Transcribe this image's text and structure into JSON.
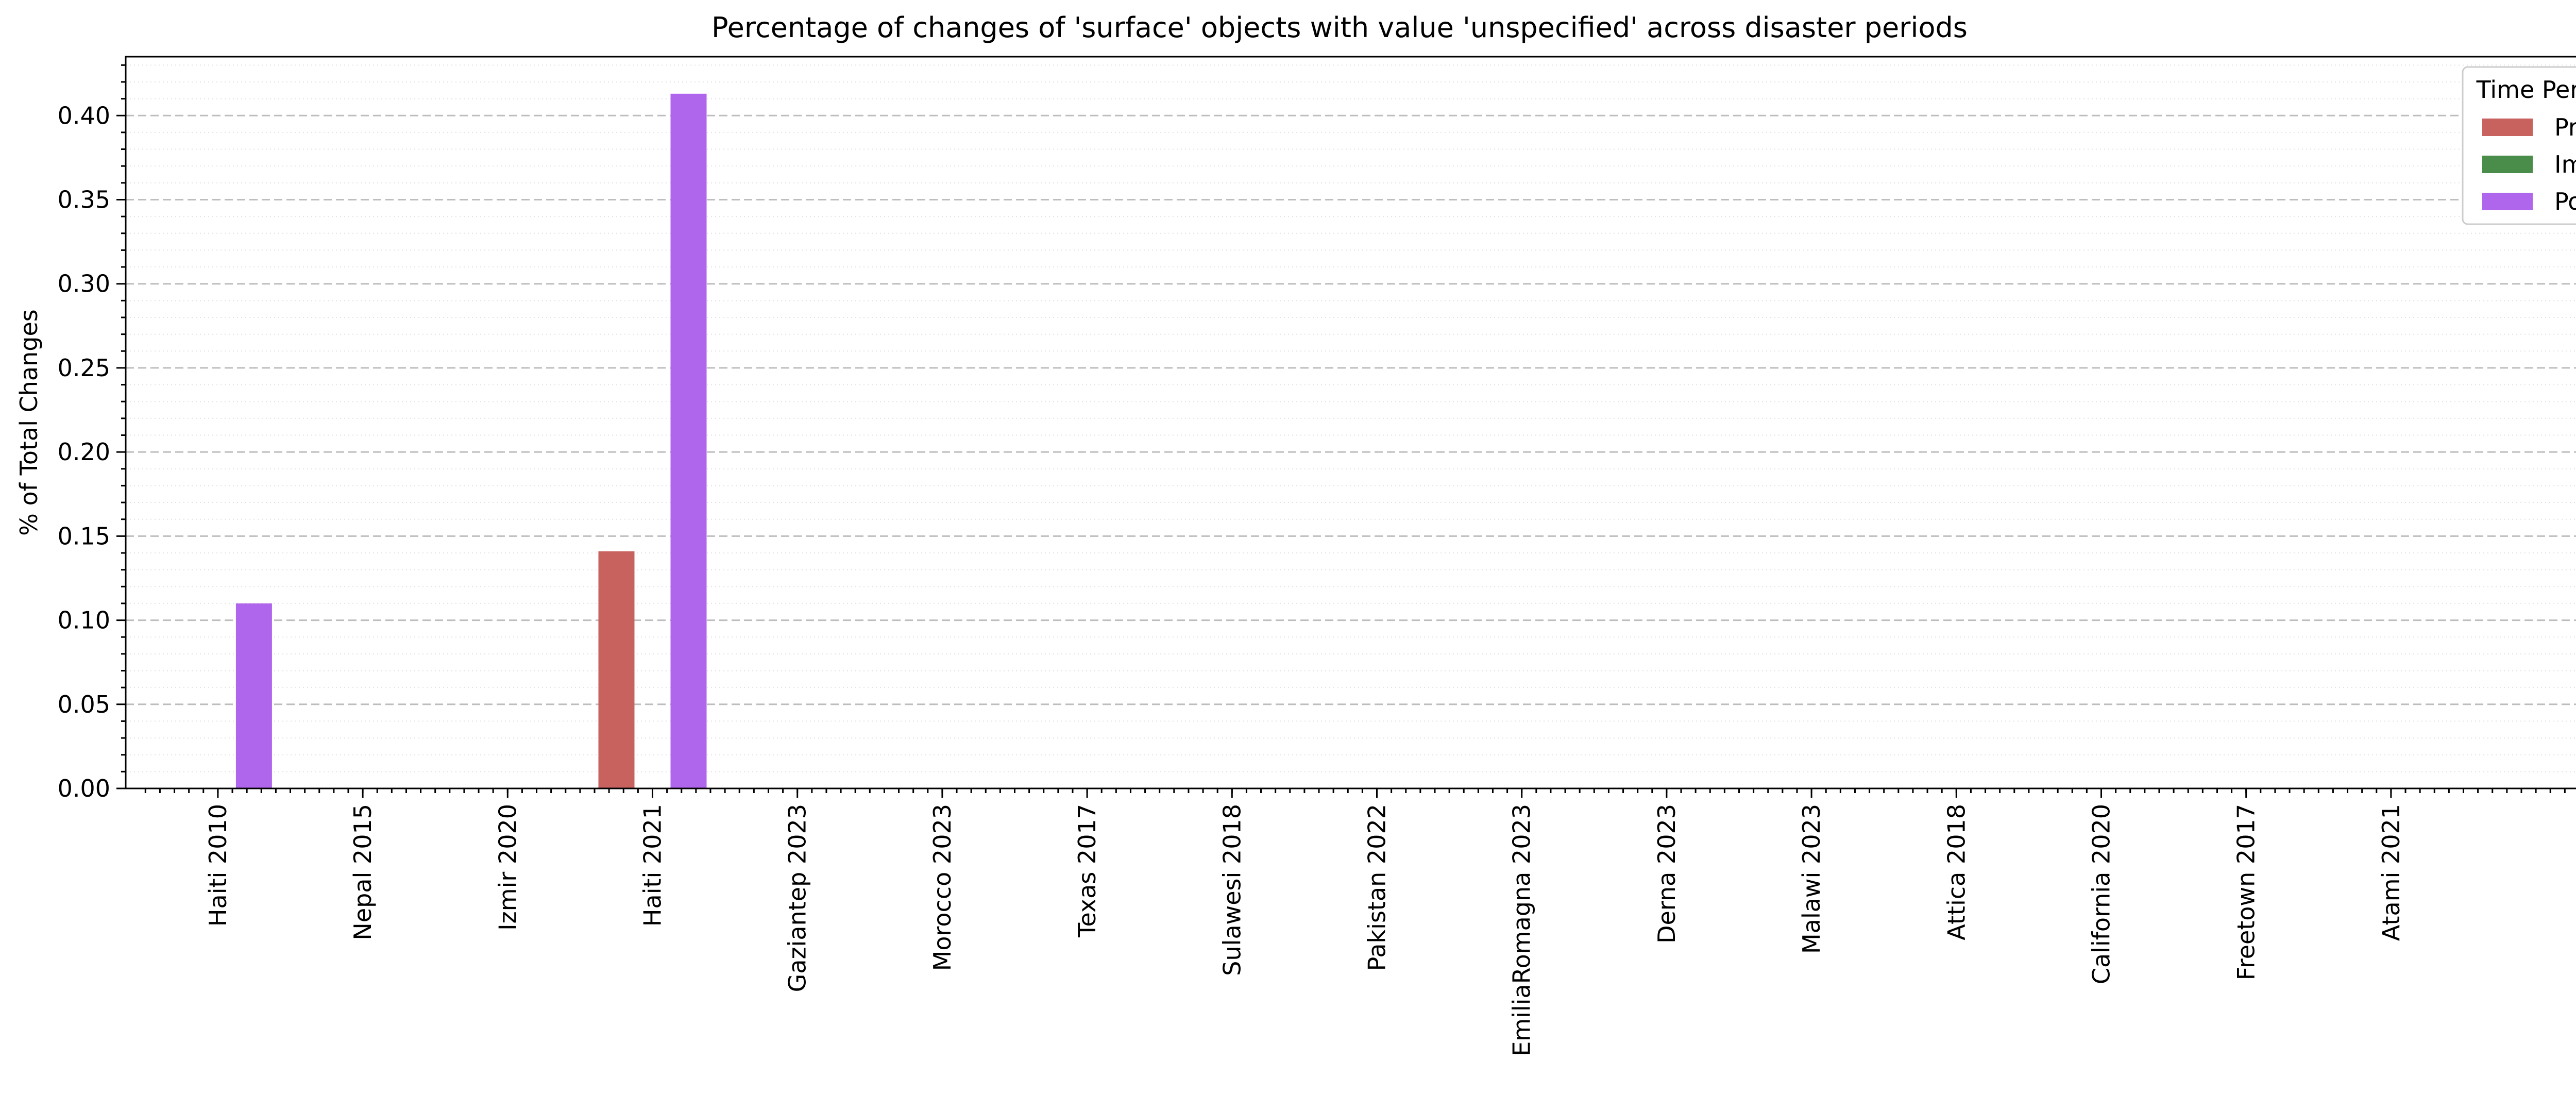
{
  "chart_data": {
    "type": "bar",
    "title": "Percentage of changes of 'surface' objects with value 'unspecified' across disaster periods",
    "xlabel": "",
    "ylabel": "% of Total Changes",
    "categories": [
      "Haiti 2010",
      "Nepal 2015",
      "Izmir 2020",
      "Haiti 2021",
      "Gaziantep 2023",
      "Morocco 2023",
      "Texas 2017",
      "Sulawesi 2018",
      "Pakistan 2022",
      "EmiliaRomagna 2023",
      "Derna 2023",
      "Malawi 2023",
      "Attica 2018",
      "California 2020",
      "Freetown 2017",
      "Atami 2021"
    ],
    "series": [
      {
        "name": "Pre",
        "color": "#c8625f",
        "values": [
          0,
          0,
          0,
          0.141,
          0,
          0,
          0,
          0,
          0,
          0,
          0,
          0,
          0,
          0,
          0,
          0
        ]
      },
      {
        "name": "Imm",
        "color": "#4a8c4a",
        "values": [
          0,
          0,
          0,
          0,
          0,
          0,
          0,
          0,
          0,
          0,
          0,
          0,
          0,
          0,
          0,
          0
        ]
      },
      {
        "name": "Post",
        "color": "#b066ec",
        "values": [
          0.11,
          0,
          0,
          0.413,
          0,
          0,
          0,
          0,
          0,
          0,
          0,
          0,
          0,
          0,
          0,
          0
        ]
      }
    ],
    "ylim": [
      0,
      0.435
    ],
    "yticks": [
      "0.00",
      "0.05",
      "0.10",
      "0.15",
      "0.20",
      "0.25",
      "0.30",
      "0.35",
      "0.40"
    ],
    "legend": {
      "title": "Time Period",
      "placement": "top-right"
    },
    "grid": {
      "major": "dashed",
      "minor": "dotted",
      "axis": "y"
    }
  }
}
